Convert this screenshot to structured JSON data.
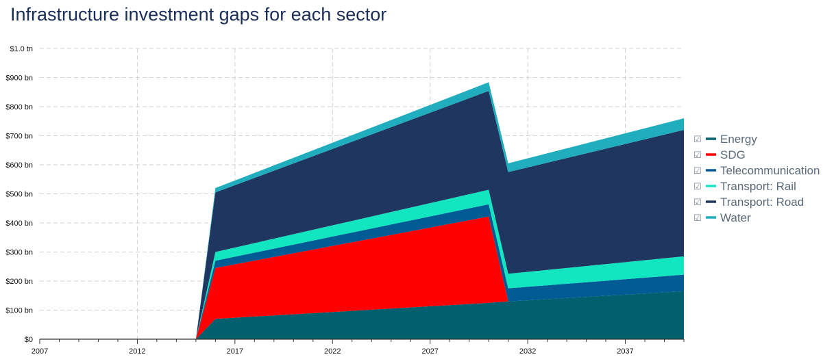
{
  "chart_data": {
    "type": "area",
    "stacked": true,
    "title": "Infrastructure investment gaps for each sector",
    "x": [
      2007,
      2015,
      2016,
      2030,
      2031,
      2040
    ],
    "xticks": [
      "2007",
      "2012",
      "2017",
      "2022",
      "2027",
      "2032",
      "2037"
    ],
    "xlim": [
      2007,
      2040
    ],
    "yticks": [
      "$0",
      "$100 bn",
      "$200 bn",
      "$300 bn",
      "$400 bn",
      "$500 bn",
      "$600 bn",
      "$700 bn",
      "$800 bn",
      "$900 bn",
      "$1.0 tn"
    ],
    "ylim": [
      0,
      1000
    ],
    "units": "bn USD",
    "grid": true,
    "legend_position": "right",
    "series": [
      {
        "name": "Energy",
        "color": "#02606e",
        "values": [
          0,
          0,
          70,
          125,
          130,
          165
        ]
      },
      {
        "name": "SDG",
        "color": "#ff0000",
        "values": [
          0,
          0,
          175,
          297,
          0,
          0
        ]
      },
      {
        "name": "Telecommunication",
        "color": "#005a94",
        "values": [
          0,
          0,
          25,
          42,
          45,
          57
        ]
      },
      {
        "name": "Transport: Rail",
        "color": "#12e6c0",
        "values": [
          0,
          0,
          30,
          50,
          50,
          63
        ]
      },
      {
        "name": "Transport: Road",
        "color": "#1f3760",
        "values": [
          0,
          0,
          205,
          340,
          350,
          435
        ]
      },
      {
        "name": "Water",
        "color": "#20adbd",
        "values": [
          0,
          0,
          15,
          30,
          30,
          40
        ]
      }
    ]
  }
}
